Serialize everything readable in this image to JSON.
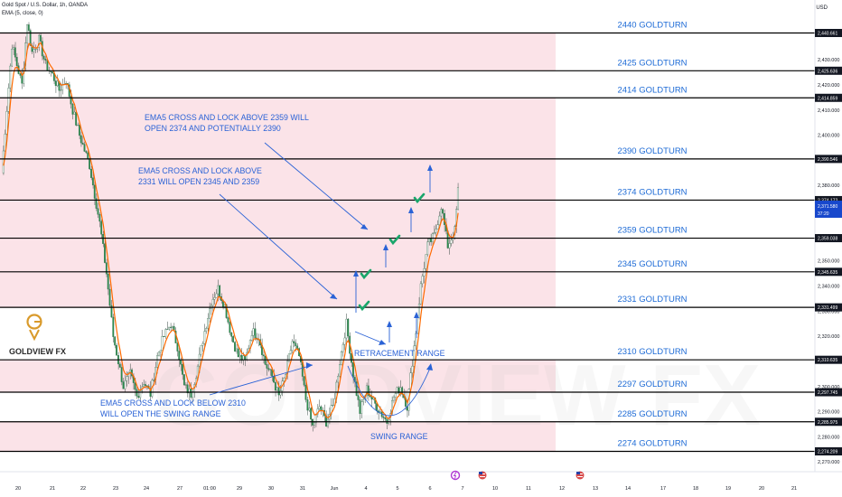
{
  "header": {
    "symbol": "Gold Spot / U.S. Dollar, 1h, OANDA",
    "indicator": "EMA (5, close, 0)",
    "currency": "USD"
  },
  "logo": {
    "text": "GOLDVIEW FX",
    "watermark": "GOLDVIEW FX"
  },
  "colors": {
    "zone": "#fbe3e8",
    "up": "#2a8f4d",
    "down": "#2a8f4d",
    "ema": "#ff6a00",
    "annotation": "#2a62d6",
    "level_line": "#000000",
    "label": "#1e6bd6",
    "check": "#1aa66b"
  },
  "chart_data": {
    "type": "candlestick",
    "ylim": [
      2265,
      2448
    ],
    "y_ticks": [
      2270,
      2280,
      2290,
      2300,
      2310,
      2320,
      2330,
      2340,
      2350,
      2360,
      2370,
      2380,
      2390,
      2400,
      2410,
      2420,
      2430
    ],
    "x_tick_labels": [
      "20",
      "21",
      "22",
      "23",
      "24",
      "27",
      "01:00",
      "29",
      "30",
      "31",
      "Jun",
      "4",
      "5",
      "6",
      "7",
      "10",
      "11",
      "12",
      "13",
      "14",
      "17",
      "18",
      "19",
      "20",
      "21"
    ],
    "level_labels": [
      {
        "price": 2440.661,
        "label": "2440 GOLDTURN",
        "box": "2,440.661"
      },
      {
        "price": 2425.636,
        "label": "2425 GOLDTURN",
        "box": "2,425.636"
      },
      {
        "price": 2414.859,
        "label": "2414 GOLDTURN",
        "box": "2,414.859"
      },
      {
        "price": 2390.546,
        "label": "2390 GOLDTURN",
        "box": "2,390.546"
      },
      {
        "price": 2374.172,
        "label": "2374 GOLDTURN",
        "box": "2,374.172"
      },
      {
        "price": 2359.038,
        "label": "2359 GOLDTURN",
        "box": "2,359.038"
      },
      {
        "price": 2345.635,
        "label": "2345 GOLDTURN",
        "box": "2,345.635"
      },
      {
        "price": 2331.499,
        "label": "2331 GOLDTURN",
        "box": "2,331.499"
      },
      {
        "price": 2310.635,
        "label": "2310 GOLDTURN",
        "box": "2,310.635"
      },
      {
        "price": 2297.745,
        "label": "2297 GOLDTURN",
        "box": "2,297.745"
      },
      {
        "price": 2285.975,
        "label": "2285 GOLDTURN",
        "box": "2,285.975"
      },
      {
        "price": 2274.209,
        "label": "2274 GOLDTURN",
        "box": "2,274.209"
      }
    ],
    "zones": [
      [
        2425.636,
        2440.661
      ],
      [
        2374.172,
        2414.859
      ],
      [
        2345.635,
        2374.172
      ],
      [
        2331.499,
        2345.635
      ],
      [
        2297.745,
        2310.635
      ],
      [
        2274.209,
        2285.975
      ]
    ],
    "current_price": {
      "value": "2,371.580",
      "countdown": "37:20"
    },
    "annotations": [
      {
        "lines": [
          "EMA5 CROSS AND LOCK ABOVE 2359 WILL",
          "OPEN 2374 AND POTENTIALLY 2390"
        ]
      },
      {
        "lines": [
          "EMA5 CROSS AND LOCK ABOVE",
          "2331 WILL OPEN 2345 AND 2359"
        ]
      },
      {
        "lines": [
          "EMA5 CROSS AND LOCK BELOW 2310",
          "WILL OPEN THE SWING RANGE"
        ]
      },
      {
        "lines": [
          "RETRACEMENT RANGE"
        ]
      },
      {
        "lines": [
          "SWING RANGE"
        ]
      }
    ],
    "path_keys": [
      [
        0,
        2385
      ],
      [
        6,
        2436
      ],
      [
        12,
        2420
      ],
      [
        15,
        2445
      ],
      [
        18,
        2433
      ],
      [
        22,
        2438
      ],
      [
        26,
        2428
      ],
      [
        30,
        2424
      ],
      [
        34,
        2418
      ],
      [
        38,
        2422
      ],
      [
        42,
        2410
      ],
      [
        46,
        2400
      ],
      [
        52,
        2388
      ],
      [
        58,
        2365
      ],
      [
        62,
        2345
      ],
      [
        66,
        2320
      ],
      [
        72,
        2300
      ],
      [
        76,
        2305
      ],
      [
        80,
        2296
      ],
      [
        84,
        2302
      ],
      [
        88,
        2297
      ],
      [
        92,
        2312
      ],
      [
        96,
        2320
      ],
      [
        100,
        2325
      ],
      [
        104,
        2316
      ],
      [
        108,
        2300
      ],
      [
        112,
        2297
      ],
      [
        116,
        2308
      ],
      [
        120,
        2322
      ],
      [
        124,
        2334
      ],
      [
        128,
        2339
      ],
      [
        132,
        2332
      ],
      [
        136,
        2320
      ],
      [
        140,
        2312
      ],
      [
        144,
        2310
      ],
      [
        148,
        2322
      ],
      [
        152,
        2320
      ],
      [
        156,
        2309
      ],
      [
        160,
        2304
      ],
      [
        164,
        2296
      ],
      [
        168,
        2305
      ],
      [
        172,
        2318
      ],
      [
        176,
        2312
      ],
      [
        180,
        2295
      ],
      [
        184,
        2284
      ],
      [
        188,
        2292
      ],
      [
        192,
        2286
      ],
      [
        196,
        2292
      ],
      [
        200,
        2310
      ],
      [
        204,
        2325
      ],
      [
        208,
        2305
      ],
      [
        212,
        2290
      ],
      [
        216,
        2299
      ],
      [
        220,
        2294
      ],
      [
        224,
        2290
      ],
      [
        228,
        2286
      ],
      [
        232,
        2296
      ],
      [
        236,
        2300
      ],
      [
        240,
        2292
      ],
      [
        244,
        2316
      ],
      [
        248,
        2340
      ],
      [
        252,
        2356
      ],
      [
        256,
        2360
      ],
      [
        260,
        2372
      ],
      [
        264,
        2356
      ],
      [
        268,
        2362
      ],
      [
        270,
        2378
      ]
    ]
  }
}
